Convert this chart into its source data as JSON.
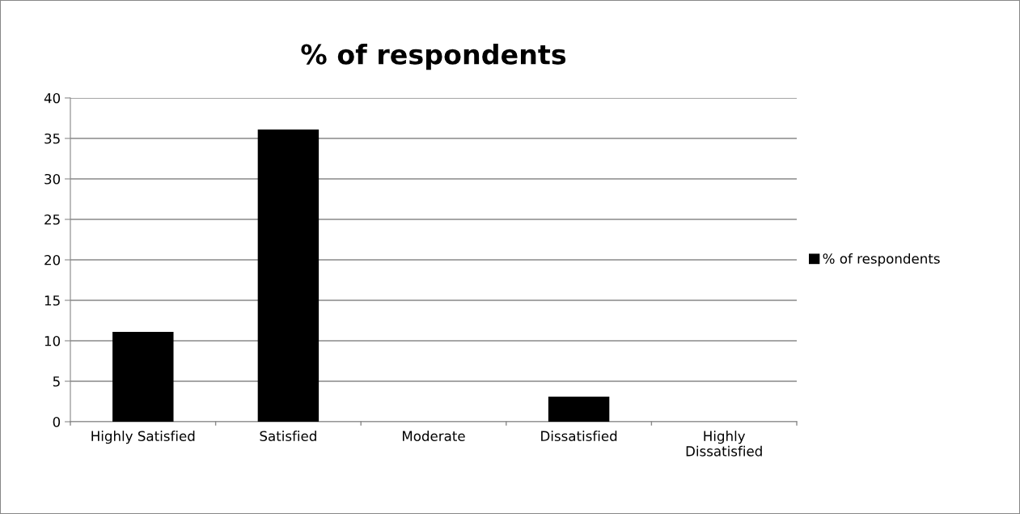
{
  "chart_data": {
    "type": "bar",
    "title": "% of respondents",
    "categories": [
      "Highly Satisfied",
      "Satisfied",
      "Moderate",
      "Dissatisfied",
      "Highly\nDissatisfied"
    ],
    "series": [
      {
        "name": "% of respondents",
        "color": "#000000",
        "values": [
          11.1,
          36.1,
          0,
          3.1,
          0
        ]
      }
    ],
    "ylim": [
      0,
      40
    ],
    "yticks": [
      0,
      5,
      10,
      15,
      20,
      25,
      30,
      35,
      40
    ],
    "grid": "y",
    "legend": "right"
  }
}
